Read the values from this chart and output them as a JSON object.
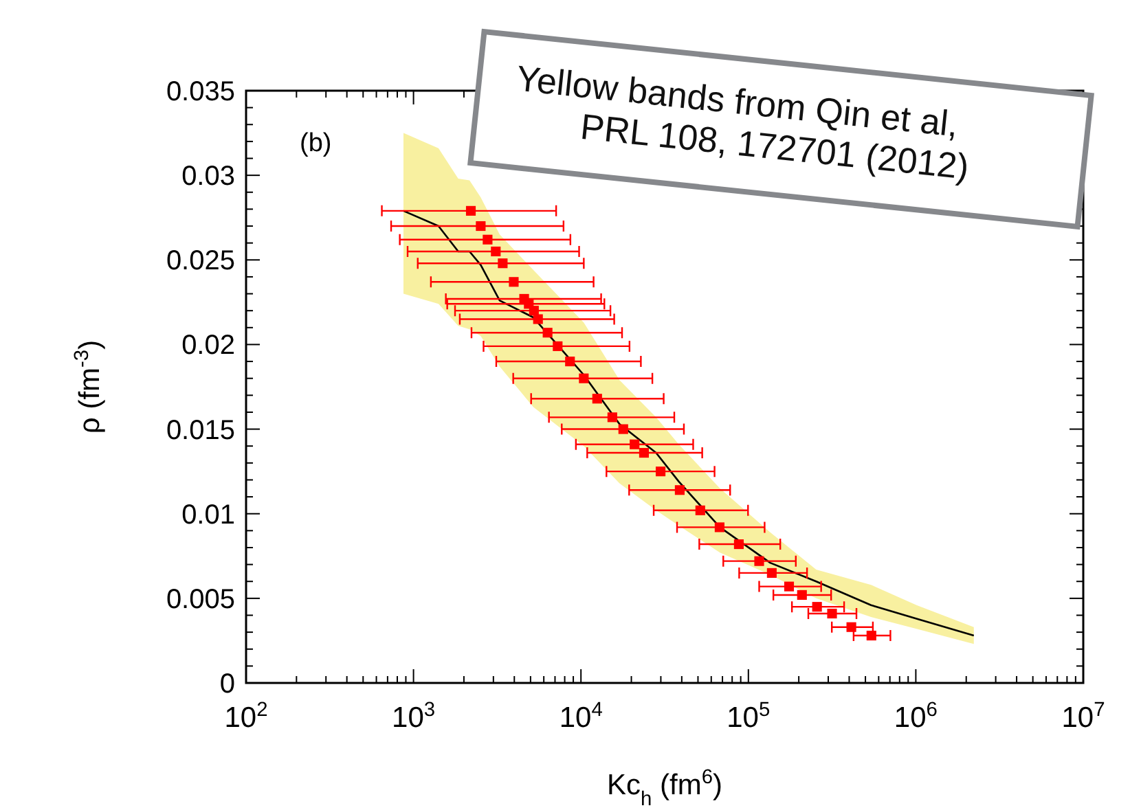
{
  "chart_data": {
    "type": "scatter",
    "xlabel": "Kc$_{h}$ (fm$^{6}$)",
    "ylabel": "ρ (fm$^{-3}$)",
    "log": "x",
    "xlim": [
      100,
      10000000
    ],
    "xticks": [
      {
        "value": 100,
        "label": "10$^{2}$"
      },
      {
        "value": 1000,
        "label": "10$^{3}$"
      },
      {
        "value": 10000,
        "label": "10$^{4}$"
      },
      {
        "value": 100000,
        "label": "10$^{5}$"
      },
      {
        "value": 1000000,
        "label": "10$^{6}$"
      },
      {
        "value": 10000000,
        "label": "10$^{7}$"
      }
    ],
    "ylim": [
      0,
      0.035
    ],
    "yticks": [
      0,
      0.005,
      0.01,
      0.015,
      0.02,
      0.025,
      0.03,
      0.035
    ],
    "grid": false,
    "annotations": [
      "(b)",
      "Yellow bands from Qin et al,\nPRL 108, 172701 (2012)"
    ],
    "series": [
      {
        "type": "line",
        "color": "#000000",
        "marker": "none",
        "line_style": "solid",
        "x": [
          871,
          1410,
          1850,
          2160,
          2520,
          3270,
          5200,
          10400,
          17000,
          28100,
          38400,
          67600,
          135000,
          254000,
          540000,
          1010000,
          2220000
        ],
        "values": [
          0.0279,
          0.027,
          0.0255,
          0.0255,
          0.0247,
          0.0226,
          0.0216,
          0.0182,
          0.0153,
          0.0136,
          0.0119,
          0.0092,
          0.0071,
          0.006,
          0.0046,
          0.0038,
          0.0028
        ],
        "upper": [
          0.0325,
          0.0316,
          0.0298,
          0.0297,
          0.0287,
          0.0265,
          0.0244,
          0.0213,
          0.0179,
          0.0157,
          0.0141,
          0.0115,
          0.0089,
          0.0067,
          0.0058,
          0.0046,
          0.0033
        ],
        "lower": [
          0.023,
          0.0224,
          0.0211,
          0.0209,
          0.0205,
          0.0187,
          0.0163,
          0.014,
          0.0118,
          0.0102,
          0.0093,
          0.0077,
          0.0064,
          0.005,
          0.0039,
          0.0032,
          0.0023
        ]
      },
      {
        "color": "#ff0000",
        "marker": "square",
        "x": [
          2200,
          2520,
          2770,
          3100,
          3410,
          3970,
          4580,
          4880,
          5240,
          5540,
          6320,
          7260,
          8600,
          10400,
          12500,
          15400,
          17900,
          20900,
          23800,
          29900,
          38900,
          51600,
          67300,
          87700,
          116000,
          138000,
          175000,
          209000,
          257000,
          316000,
          412000,
          543000
        ],
        "values": [
          0.0279,
          0.027,
          0.0262,
          0.0255,
          0.0248,
          0.0237,
          0.0227,
          0.0224,
          0.022,
          0.0215,
          0.0207,
          0.0199,
          0.019,
          0.018,
          0.0168,
          0.0157,
          0.015,
          0.0141,
          0.0136,
          0.0125,
          0.0114,
          0.0102,
          0.0092,
          0.0082,
          0.0072,
          0.0065,
          0.0057,
          0.0052,
          0.0045,
          0.0041,
          0.0033,
          0.0028
        ],
        "xerrors": [
          [
            647,
            7110
          ],
          [
            735,
            7870
          ],
          [
            828,
            8650
          ],
          [
            922,
            9750
          ],
          [
            1060,
            10400
          ],
          [
            1270,
            11900
          ],
          [
            1560,
            13200
          ],
          [
            1590,
            13800
          ],
          [
            1770,
            15000
          ],
          [
            1890,
            15800
          ],
          [
            2220,
            17600
          ],
          [
            2620,
            19500
          ],
          [
            3120,
            22800
          ],
          [
            3940,
            26700
          ],
          [
            5040,
            31200
          ],
          [
            6440,
            36100
          ],
          [
            7680,
            41200
          ],
          [
            9330,
            46800
          ],
          [
            10900,
            53000
          ],
          [
            14200,
            62800
          ],
          [
            19400,
            77800
          ],
          [
            27200,
            99500
          ],
          [
            37500,
            125000
          ],
          [
            50900,
            155000
          ],
          [
            70800,
            192000
          ],
          [
            88100,
            224000
          ],
          [
            116000,
            272000
          ],
          [
            141000,
            312000
          ],
          [
            182000,
            373000
          ],
          [
            228000,
            442000
          ],
          [
            315000,
            554000
          ],
          [
            425000,
            705000
          ]
        ]
      }
    ]
  }
}
